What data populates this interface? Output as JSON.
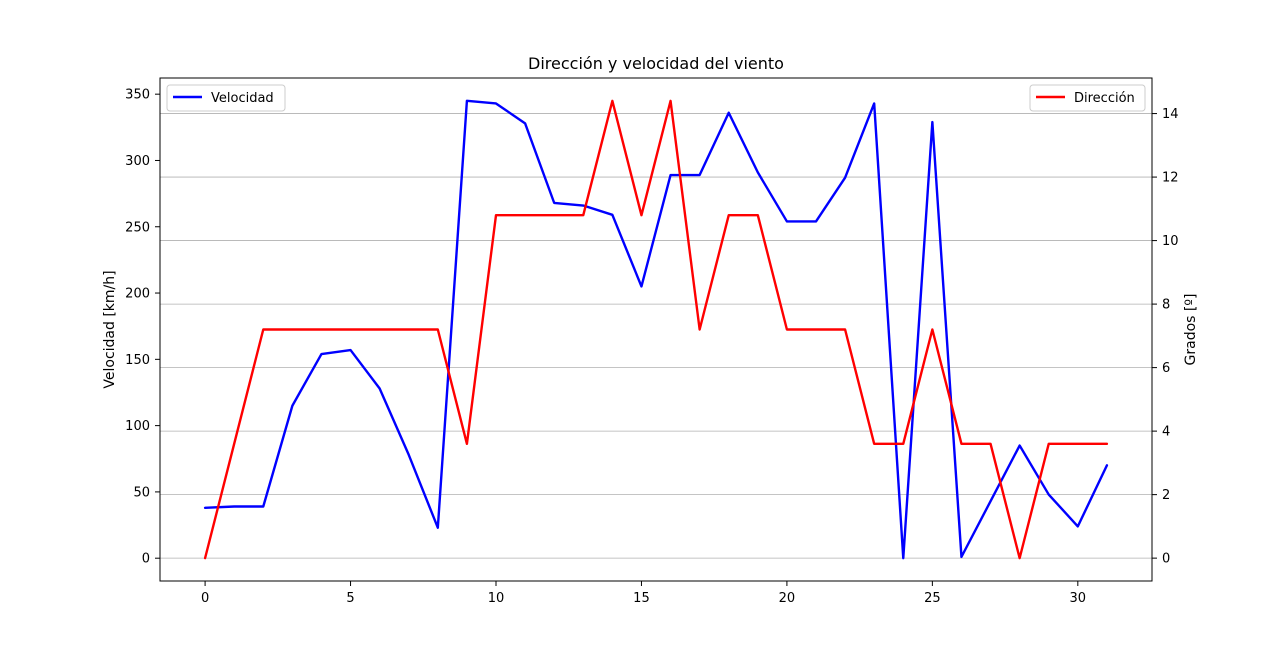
{
  "chart_data": {
    "type": "line",
    "title": "Dirección y velocidad del viento",
    "ylabel": "Velocidad [km/h]",
    "y2label": "Grados [º]",
    "xlim": [
      -1.55,
      32.55
    ],
    "ylim": [
      -17.2,
      362.2
    ],
    "y2lim": [
      -0.72,
      15.12
    ],
    "grid": "horizontal, right axis",
    "x_ticks": [
      0,
      5,
      10,
      15,
      20,
      25,
      30
    ],
    "y_ticks": [
      0,
      50,
      100,
      150,
      200,
      250,
      300,
      350
    ],
    "y2_ticks": [
      0,
      2,
      4,
      6,
      8,
      10,
      12,
      14
    ],
    "x": [
      0,
      1,
      2,
      3,
      4,
      5,
      6,
      7,
      8,
      9,
      10,
      11,
      12,
      13,
      14,
      15,
      16,
      17,
      18,
      19,
      20,
      21,
      22,
      23,
      24,
      25,
      26,
      27,
      28,
      29,
      30,
      31
    ],
    "series": [
      {
        "name": "Velocidad",
        "axis": "left",
        "color": "#0000ff",
        "legend": "upper left",
        "values": [
          38,
          39,
          39,
          115,
          154,
          157,
          128,
          78,
          23,
          345,
          343,
          328,
          268,
          266,
          259,
          205,
          289,
          289,
          336,
          291,
          254,
          254,
          287,
          343,
          0,
          329,
          1,
          43,
          85,
          48,
          24,
          70
        ]
      },
      {
        "name": "Dirección",
        "axis": "right",
        "color": "#ff0000",
        "legend": "upper right",
        "values": [
          0,
          3.6,
          7.2,
          7.2,
          7.2,
          7.2,
          7.2,
          7.2,
          7.2,
          3.6,
          10.8,
          10.8,
          10.8,
          10.8,
          14.4,
          10.8,
          14.4,
          7.2,
          10.8,
          10.8,
          7.2,
          7.2,
          7.2,
          3.6,
          3.6,
          7.2,
          3.6,
          3.6,
          0,
          3.6,
          3.6,
          3.6
        ]
      }
    ]
  }
}
